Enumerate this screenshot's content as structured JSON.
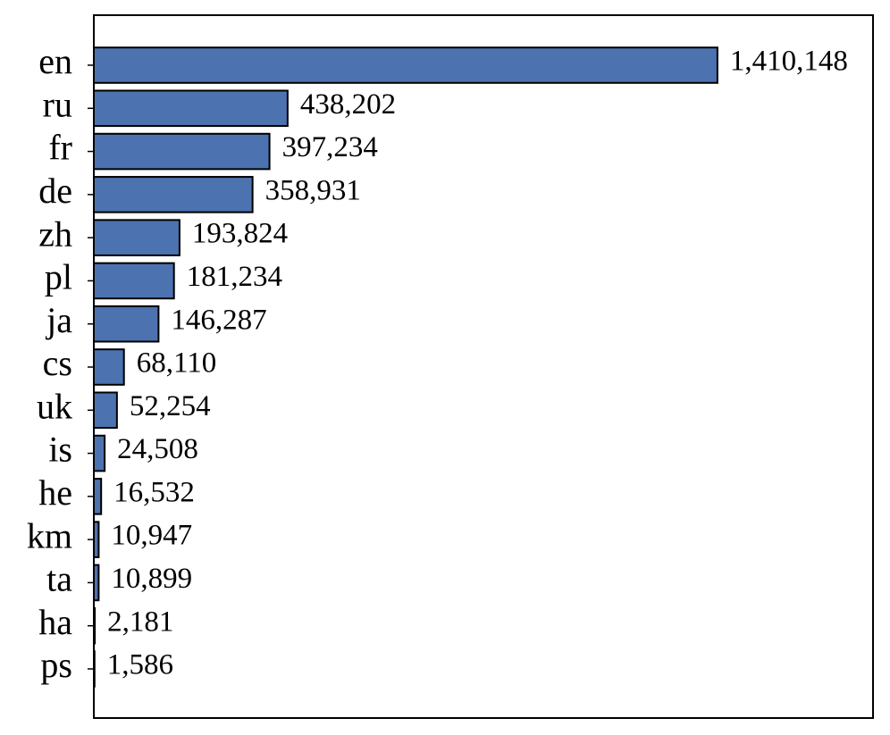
{
  "chart_data": {
    "type": "barh",
    "categories": [
      "en",
      "ru",
      "fr",
      "de",
      "zh",
      "pl",
      "ja",
      "cs",
      "uk",
      "is",
      "he",
      "km",
      "ta",
      "ha",
      "ps"
    ],
    "values": [
      1410148,
      438202,
      397234,
      358931,
      193824,
      181234,
      146287,
      68110,
      52254,
      24508,
      16532,
      10947,
      10899,
      2181,
      1586
    ],
    "value_labels": [
      "1,410,148",
      "438,202",
      "397,234",
      "358,931",
      "193,824",
      "181,234",
      "146,287",
      "68,110",
      "52,254",
      "24,508",
      "16,532",
      "10,947",
      "10,899",
      "2,181",
      "1,586"
    ],
    "color": "#4c72b0",
    "xlim": [
      0,
      1762000
    ]
  }
}
